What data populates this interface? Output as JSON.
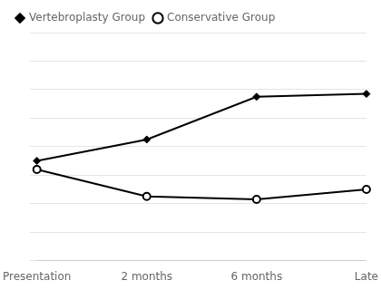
{
  "chart_data": {
    "type": "line",
    "categories": [
      "Presentation",
      "2 months",
      "6 months",
      "Late"
    ],
    "series": [
      {
        "name": "Vertebroplasty Group",
        "color": "#000000",
        "marker": "diamond",
        "values": [
          7.0,
          8.5,
          11.5,
          11.7
        ]
      },
      {
        "name": "Conservative Group",
        "color": "#000000",
        "marker": "open_circle",
        "values": [
          6.4,
          4.5,
          4.3,
          5.0
        ]
      }
    ],
    "ylim": [
      0,
      16
    ],
    "yticks": [
      0,
      2,
      4,
      6,
      8,
      10,
      12,
      14,
      16
    ],
    "grid": true,
    "legend": "upper left",
    "tick_labels": "x"
  }
}
